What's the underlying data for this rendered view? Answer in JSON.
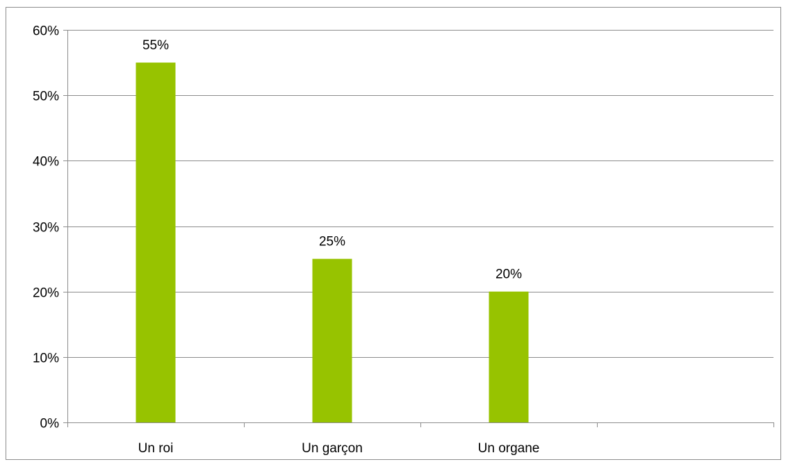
{
  "chart_data": {
    "type": "bar",
    "categories": [
      "Un roi",
      "Un garçon",
      "Un organe",
      ""
    ],
    "values": [
      55,
      25,
      20,
      null
    ],
    "data_labels": [
      "55%",
      "25%",
      "20%",
      ""
    ],
    "yticks": [
      0,
      10,
      20,
      30,
      40,
      50,
      60
    ],
    "ytick_labels": [
      "0%",
      "10%",
      "20%",
      "30%",
      "40%",
      "50%",
      "60%"
    ],
    "ylim": [
      0,
      60
    ],
    "grid": true,
    "legend": "none",
    "title": "",
    "xlabel": "",
    "ylabel": "",
    "colors": {
      "bar": "#97c300",
      "grid": "#8c8c8c",
      "text": "#000000"
    }
  }
}
